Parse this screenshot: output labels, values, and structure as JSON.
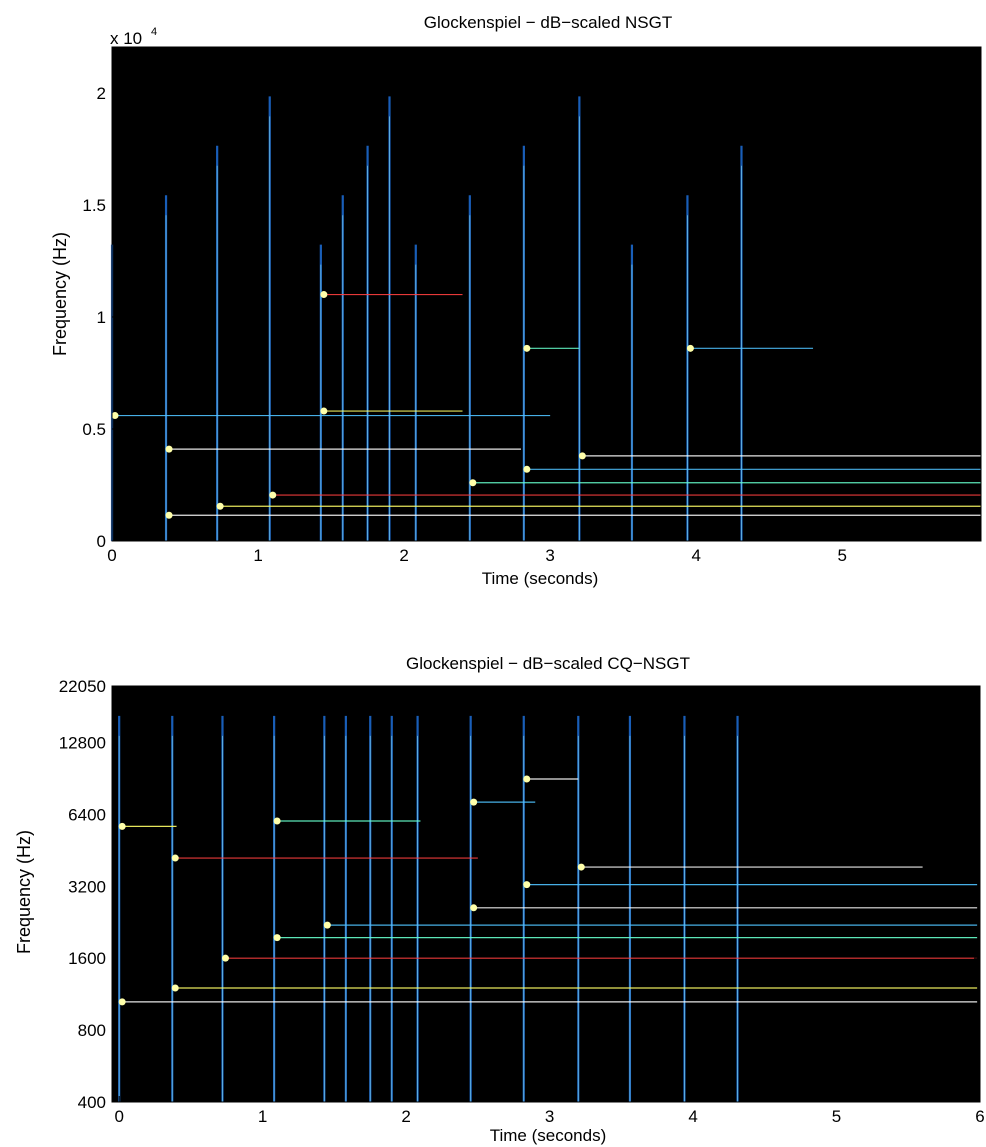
{
  "chart_data": [
    {
      "type": "heatmap",
      "title": "Glockenspiel − dB−scaled NSGT",
      "xlabel": "Time (seconds)",
      "ylabel": "Frequency (Hz)",
      "y_exponent_label": "x 10",
      "y_exponent_power": "4",
      "xlim": [
        0,
        5.95
      ],
      "ylim": [
        0,
        22050
      ],
      "x_ticks": [
        {
          "value": 0,
          "label": "0"
        },
        {
          "value": 1,
          "label": "1"
        },
        {
          "value": 2,
          "label": "2"
        },
        {
          "value": 3,
          "label": "3"
        },
        {
          "value": 4,
          "label": "4"
        },
        {
          "value": 5,
          "label": "5"
        }
      ],
      "y_ticks": [
        {
          "value": 0,
          "label": "0"
        },
        {
          "value": 5000,
          "label": "0.5"
        },
        {
          "value": 10000,
          "label": "1"
        },
        {
          "value": 15000,
          "label": "1.5"
        },
        {
          "value": 20000,
          "label": "2"
        }
      ],
      "onsets": [
        0.0,
        0.37,
        0.72,
        1.08,
        1.43,
        1.58,
        1.75,
        1.9,
        2.08,
        2.45,
        2.82,
        3.2,
        3.56,
        3.94,
        4.31
      ],
      "partials": [
        {
          "t0": 0.37,
          "t1": 5.95,
          "freq": 1150
        },
        {
          "t0": 0.72,
          "t1": 5.95,
          "freq": 1550
        },
        {
          "t0": 1.08,
          "t1": 5.95,
          "freq": 2050
        },
        {
          "t0": 2.45,
          "t1": 5.95,
          "freq": 2600
        },
        {
          "t0": 2.82,
          "t1": 5.95,
          "freq": 3200
        },
        {
          "t0": 3.2,
          "t1": 5.95,
          "freq": 3800
        },
        {
          "t0": 0.0,
          "t1": 3.0,
          "freq": 5600
        },
        {
          "t0": 0.37,
          "t1": 2.8,
          "freq": 4100
        },
        {
          "t0": 1.43,
          "t1": 2.4,
          "freq": 5800
        },
        {
          "t0": 1.43,
          "t1": 2.4,
          "freq": 11000
        },
        {
          "t0": 2.82,
          "t1": 3.2,
          "freq": 8600
        },
        {
          "t0": 3.94,
          "t1": 4.8,
          "freq": 8600
        }
      ]
    },
    {
      "type": "heatmap",
      "title": "Glockenspiel − dB−scaled CQ−NSGT",
      "xlabel": "Time (seconds)",
      "ylabel": "Frequency (Hz)",
      "yscale": "log",
      "xlim": [
        -0.05,
        6.0
      ],
      "ylim": [
        400,
        22050
      ],
      "x_ticks": [
        {
          "value": 0,
          "label": "0"
        },
        {
          "value": 1,
          "label": "1"
        },
        {
          "value": 2,
          "label": "2"
        },
        {
          "value": 3,
          "label": "3"
        },
        {
          "value": 4,
          "label": "4"
        },
        {
          "value": 5,
          "label": "5"
        },
        {
          "value": 6,
          "label": "6"
        }
      ],
      "y_ticks": [
        {
          "value": 400,
          "label": "400"
        },
        {
          "value": 800,
          "label": "800"
        },
        {
          "value": 1600,
          "label": "1600"
        },
        {
          "value": 3200,
          "label": "3200"
        },
        {
          "value": 6400,
          "label": "6400"
        },
        {
          "value": 12800,
          "label": "12800"
        },
        {
          "value": 22050,
          "label": "22050"
        }
      ],
      "onsets": [
        0.0,
        0.37,
        0.72,
        1.08,
        1.43,
        1.58,
        1.75,
        1.9,
        2.08,
        2.45,
        2.82,
        3.2,
        3.56,
        3.94,
        4.31
      ],
      "partials": [
        {
          "t0": 0.0,
          "t1": 5.98,
          "freq": 1050
        },
        {
          "t0": 0.37,
          "t1": 5.98,
          "freq": 1200
        },
        {
          "t0": 0.72,
          "t1": 5.98,
          "freq": 1600
        },
        {
          "t0": 1.08,
          "t1": 5.98,
          "freq": 1950
        },
        {
          "t0": 1.43,
          "t1": 5.98,
          "freq": 2200
        },
        {
          "t0": 2.45,
          "t1": 5.98,
          "freq": 2600
        },
        {
          "t0": 2.82,
          "t1": 5.98,
          "freq": 3250
        },
        {
          "t0": 3.2,
          "t1": 5.6,
          "freq": 3850
        },
        {
          "t0": 0.0,
          "t1": 0.4,
          "freq": 5700
        },
        {
          "t0": 0.37,
          "t1": 2.5,
          "freq": 4200
        },
        {
          "t0": 1.08,
          "t1": 2.1,
          "freq": 6000
        },
        {
          "t0": 2.45,
          "t1": 2.9,
          "freq": 7200
        },
        {
          "t0": 2.82,
          "t1": 3.2,
          "freq": 9000
        }
      ]
    }
  ]
}
